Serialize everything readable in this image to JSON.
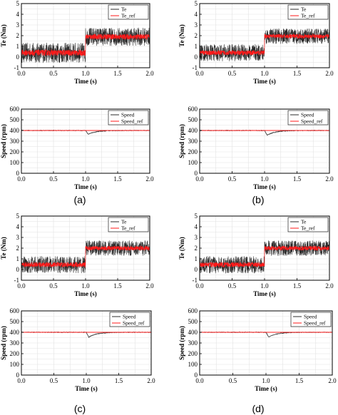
{
  "panel_labels": [
    "(a)",
    "(b)",
    "(c)",
    "(d)"
  ],
  "chart_data": [
    {
      "panel": "(a)",
      "type": "line",
      "xlabel": "Time (s)",
      "ylabel": "Te (Nm)",
      "xlim": [
        0,
        2.0
      ],
      "ylim": [
        -1,
        5
      ],
      "xticks": [
        "0.0",
        "0.5",
        "1.0",
        "1.5",
        "2.0"
      ],
      "yticks": [
        "-1",
        "0",
        "1",
        "2",
        "3",
        "4",
        "5"
      ],
      "grid": true,
      "legend_position": "top-right",
      "series": [
        {
          "name": "Te",
          "color": "#2b2b2b",
          "level_before": 0.4,
          "level_after": 1.9,
          "ripple": 0.95
        },
        {
          "name": "Te_ref",
          "color": "#ff1a1a",
          "level_before": 0.4,
          "level_after": 1.9,
          "ripple": 0.28
        }
      ],
      "step_time": 1.0
    },
    {
      "panel": "(a)",
      "type": "line",
      "xlabel": "Time (s)",
      "ylabel": "Speed (rpm)",
      "xlim": [
        0,
        2.0
      ],
      "ylim": [
        0,
        600
      ],
      "xticks": [
        "0.0",
        "0.5",
        "1.0",
        "1.5",
        "2.0"
      ],
      "yticks": [
        "0",
        "100",
        "200",
        "300",
        "400",
        "500",
        "600"
      ],
      "grid": true,
      "legend_position": "top-right",
      "series": [
        {
          "name": "Speed",
          "color": "#2b2b2b",
          "steady": 400,
          "dip": 365
        },
        {
          "name": "Speed_ref",
          "color": "#ff1a1a",
          "steady": 400
        }
      ],
      "step_time": 1.0
    },
    {
      "panel": "(b)",
      "type": "line",
      "xlabel": "Time (s)",
      "ylabel": "Te (Nm)",
      "xlim": [
        0,
        2.0
      ],
      "ylim": [
        -1,
        5
      ],
      "xticks": [
        "0.0",
        "0.5",
        "1.0",
        "1.5",
        "2.0"
      ],
      "yticks": [
        "-1",
        "0",
        "1",
        "2",
        "3",
        "4",
        "5"
      ],
      "grid": true,
      "legend_position": "top-right",
      "series": [
        {
          "name": "Te",
          "color": "#2b2b2b",
          "level_before": 0.4,
          "level_after": 1.95,
          "ripple": 0.8
        },
        {
          "name": "Te_ref",
          "color": "#ff1a1a",
          "level_before": 0.4,
          "level_after": 1.95,
          "ripple": 0.22
        }
      ],
      "step_time": 1.0
    },
    {
      "panel": "(b)",
      "type": "line",
      "xlabel": "Time (s)",
      "ylabel": "Speed (rpm)",
      "xlim": [
        0,
        2.0
      ],
      "ylim": [
        0,
        600
      ],
      "xticks": [
        "0.0",
        "0.5",
        "1.0",
        "1.5",
        "2.0"
      ],
      "yticks": [
        "0",
        "100",
        "200",
        "300",
        "400",
        "500",
        "600"
      ],
      "grid": true,
      "legend_position": "top-right",
      "series": [
        {
          "name": "Speed",
          "color": "#2b2b2b",
          "steady": 400,
          "dip": 355
        },
        {
          "name": "Speed_ref",
          "color": "#ff1a1a",
          "steady": 400
        }
      ],
      "step_time": 1.0
    },
    {
      "panel": "(c)",
      "type": "line",
      "xlabel": "Time (s)",
      "ylabel": "Te (Nm)",
      "xlim": [
        0,
        2.0
      ],
      "ylim": [
        -1,
        5
      ],
      "xticks": [
        "0.0",
        "0.5",
        "1.0",
        "1.5",
        "2.0"
      ],
      "yticks": [
        "-1",
        "0",
        "1",
        "2",
        "3",
        "4",
        "5"
      ],
      "grid": true,
      "legend_position": "top-right",
      "series": [
        {
          "name": "Te",
          "color": "#2b2b2b",
          "level_before": 0.45,
          "level_after": 2.0,
          "ripple": 0.8
        },
        {
          "name": "Te_ref",
          "color": "#ff1a1a",
          "level_before": 0.45,
          "level_after": 2.0,
          "ripple": 0.22
        }
      ],
      "step_time": 1.0
    },
    {
      "panel": "(c)",
      "type": "line",
      "xlabel": "Time (s)",
      "ylabel": "Speed (rpm)",
      "xlim": [
        0,
        2.0
      ],
      "ylim": [
        0,
        600
      ],
      "xticks": [
        "0.0",
        "0.5",
        "1.0",
        "1.5",
        "2.0"
      ],
      "yticks": [
        "0",
        "100",
        "200",
        "300",
        "400",
        "500",
        "600"
      ],
      "grid": true,
      "legend_position": "top-right",
      "series": [
        {
          "name": "Speed",
          "color": "#2b2b2b",
          "steady": 400,
          "dip": 355
        },
        {
          "name": "Speed_ref",
          "color": "#ff1a1a",
          "steady": 400
        }
      ],
      "step_time": 1.0
    },
    {
      "panel": "(d)",
      "type": "line",
      "xlabel": "Time (s)",
      "ylabel": "Te (Nm)",
      "xlim": [
        0,
        2.0
      ],
      "ylim": [
        -1,
        5
      ],
      "xticks": [
        "0.0",
        "0.5",
        "1.0",
        "1.5",
        "2.0"
      ],
      "yticks": [
        "-1",
        "0",
        "1",
        "2",
        "3",
        "4",
        "5"
      ],
      "grid": true,
      "legend_position": "top-right",
      "series": [
        {
          "name": "Te",
          "color": "#2b2b2b",
          "level_before": 0.45,
          "level_after": 2.0,
          "ripple": 0.8
        },
        {
          "name": "Te_ref",
          "color": "#ff1a1a",
          "level_before": 0.45,
          "level_after": 2.0,
          "ripple": 0.22
        }
      ],
      "step_time": 1.0
    },
    {
      "panel": "(d)",
      "type": "line",
      "xlabel": "Time (s)",
      "ylabel": "Speed (rpm)",
      "xlim": [
        0,
        2.0
      ],
      "ylim": [
        0,
        600
      ],
      "xticks": [
        "0.0",
        "0.5",
        "1.0",
        "1.5",
        "2.0"
      ],
      "yticks": [
        "0",
        "100",
        "200",
        "300",
        "400",
        "500",
        "600"
      ],
      "grid": true,
      "legend_position": "top-right",
      "series": [
        {
          "name": "Speed",
          "color": "#2b2b2b",
          "steady": 400,
          "dip": 355
        },
        {
          "name": "Speed_ref",
          "color": "#ff1a1a",
          "steady": 400
        }
      ],
      "step_time": 1.0
    }
  ]
}
